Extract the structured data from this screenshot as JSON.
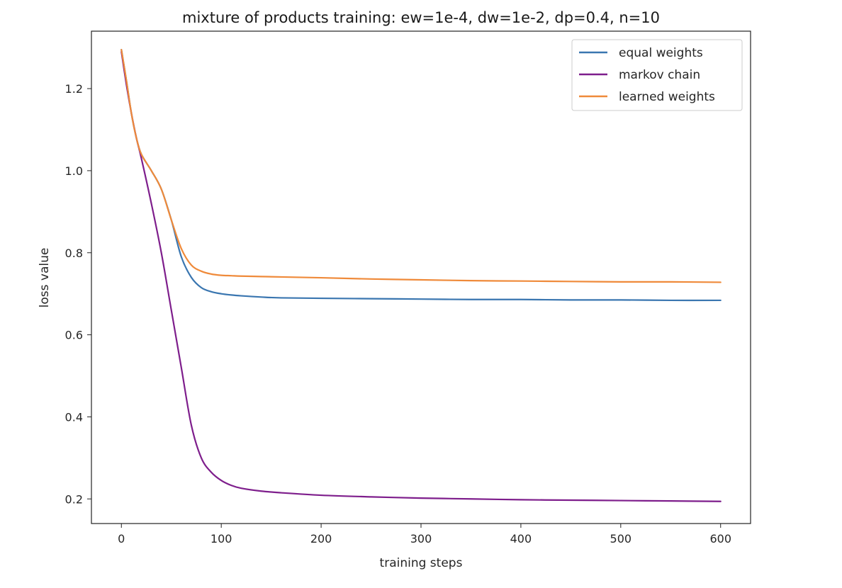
{
  "chart_data": {
    "type": "line",
    "title": "mixture of products training: ew=1e-4, dw=1e-2, dp=0.4, n=10",
    "xlabel": "training steps",
    "ylabel": "loss value",
    "xlim": [
      -30,
      630
    ],
    "ylim": [
      0.14,
      1.34
    ],
    "xticks": [
      0,
      100,
      200,
      300,
      400,
      500,
      600
    ],
    "yticks": [
      0.2,
      0.4,
      0.6,
      0.8,
      1.0,
      1.2
    ],
    "xtick_labels": [
      "0",
      "100",
      "200",
      "300",
      "400",
      "500",
      "600"
    ],
    "ytick_labels": [
      "0.2",
      "0.4",
      "0.6",
      "0.8",
      "1.0",
      "1.2"
    ],
    "grid": false,
    "legend_position": "top-right",
    "x": [
      0,
      5,
      10,
      15,
      20,
      30,
      40,
      50,
      60,
      70,
      80,
      90,
      100,
      110,
      120,
      140,
      160,
      200,
      250,
      300,
      350,
      400,
      450,
      500,
      550,
      600
    ],
    "series": [
      {
        "name": "equal weights",
        "color": "#3a76b0",
        "values": [
          1.295,
          1.22,
          1.14,
          1.08,
          1.04,
          1.0,
          0.955,
          0.88,
          0.79,
          0.74,
          0.715,
          0.705,
          0.7,
          0.697,
          0.695,
          0.692,
          0.69,
          0.689,
          0.688,
          0.687,
          0.686,
          0.686,
          0.685,
          0.685,
          0.684,
          0.684
        ]
      },
      {
        "name": "markov chain",
        "color": "#7e1e8c",
        "values": [
          1.29,
          1.21,
          1.14,
          1.08,
          1.03,
          0.92,
          0.8,
          0.66,
          0.52,
          0.38,
          0.3,
          0.265,
          0.245,
          0.233,
          0.226,
          0.219,
          0.215,
          0.209,
          0.205,
          0.202,
          0.2,
          0.198,
          0.197,
          0.196,
          0.195,
          0.194
        ]
      },
      {
        "name": "learned weights",
        "color": "#ef8a3a",
        "values": [
          1.295,
          1.22,
          1.14,
          1.08,
          1.04,
          1.0,
          0.955,
          0.88,
          0.81,
          0.77,
          0.755,
          0.748,
          0.745,
          0.744,
          0.743,
          0.742,
          0.741,
          0.739,
          0.736,
          0.734,
          0.732,
          0.731,
          0.73,
          0.729,
          0.729,
          0.728
        ]
      }
    ]
  }
}
